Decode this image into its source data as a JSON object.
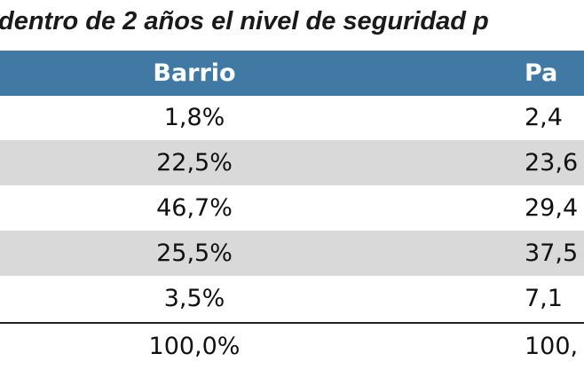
{
  "title": "dentro de 2 años el nivel de seguridad p",
  "table": {
    "header": [
      "Barrio",
      "Pa"
    ],
    "rows": [
      [
        "1,8%",
        "2,4"
      ],
      [
        "22,5%",
        "23,6"
      ],
      [
        "46,7%",
        "29,4"
      ],
      [
        "25,5%",
        "37,5"
      ],
      [
        "3,5%",
        "7,1"
      ]
    ],
    "total": [
      "100,0%",
      "100,"
    ]
  }
}
